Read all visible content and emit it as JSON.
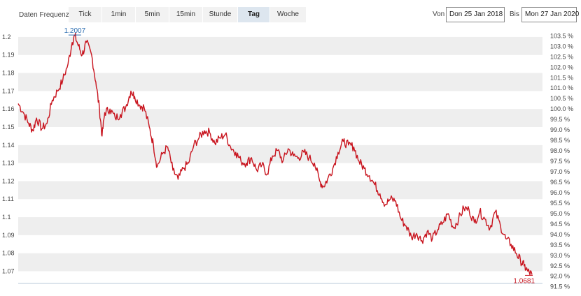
{
  "toolbar": {
    "frequency_label": "Daten Frequenz",
    "frequencies": [
      {
        "label": "Tick",
        "active": false
      },
      {
        "label": "1min",
        "active": false
      },
      {
        "label": "5min",
        "active": false
      },
      {
        "label": "15min",
        "active": false
      },
      {
        "label": "Stunde",
        "active": false
      },
      {
        "label": "Tag",
        "active": true
      },
      {
        "label": "Woche",
        "active": false
      }
    ],
    "from_label": "Von",
    "from_date": "Don 25 Jan 2018",
    "to_label": "Bis",
    "to_date": "Mon 27 Jan 2020"
  },
  "colors": {
    "line": "#c8141e",
    "band": "#eeeeee",
    "high_annotation": "#2a6cb0",
    "low_annotation": "#c8141e"
  },
  "chart_data": {
    "type": "line",
    "title": "",
    "xlabel": "",
    "ylabel": "",
    "x_start": "2018-01-25",
    "x_end": "2020-01-27",
    "ylim": [
      1.064,
      1.205
    ],
    "y_ticks": [
      1.2,
      1.19,
      1.18,
      1.17,
      1.16,
      1.15,
      1.14,
      1.13,
      1.12,
      1.11,
      1.1,
      1.09,
      1.08,
      1.07
    ],
    "y_tick_labels": [
      "1.2",
      "1.19",
      "1.18",
      "1.17",
      "1.16",
      "1.15",
      "1.14",
      "1.13",
      "1.12",
      "1.11",
      "1.1",
      "1.09",
      "1.08",
      "1.07"
    ],
    "y2_ticks": [
      103.5,
      103.0,
      102.5,
      102.0,
      101.5,
      101.0,
      100.5,
      100.0,
      99.5,
      99.0,
      98.5,
      98.0,
      97.5,
      97.0,
      96.5,
      96.0,
      95.5,
      95.0,
      94.5,
      94.0,
      93.5,
      93.0,
      92.5,
      92.0,
      91.5
    ],
    "y2_tick_labels": [
      "103.5 %",
      "103.0 %",
      "102.5 %",
      "102.0 %",
      "101.5 %",
      "101.0 %",
      "100.5 %",
      "100.0 %",
      "99.5 %",
      "99.0 %",
      "98.5 %",
      "98.0 %",
      "97.5 %",
      "97.0 %",
      "96.5 %",
      "96.0 %",
      "95.5 %",
      "95.0 %",
      "94.5 %",
      "94.0 %",
      "93.5 %",
      "93.0 %",
      "92.5 %",
      "92.0 %",
      "91.5 %"
    ],
    "y2_base": 1.16,
    "grid": "alternating bands",
    "legend": "none",
    "annotations": {
      "high": {
        "label": "1.2007",
        "value": 1.2007
      },
      "low": {
        "label": "1.0681",
        "value": 1.0681
      }
    },
    "series": [
      {
        "values": [
          [
            0.0,
            1.163
          ],
          [
            0.01,
            1.158
          ],
          [
            0.02,
            1.152
          ],
          [
            0.028,
            1.148
          ],
          [
            0.035,
            1.155
          ],
          [
            0.045,
            1.149
          ],
          [
            0.055,
            1.152
          ],
          [
            0.065,
            1.165
          ],
          [
            0.075,
            1.17
          ],
          [
            0.085,
            1.176
          ],
          [
            0.095,
            1.185
          ],
          [
            0.103,
            1.197
          ],
          [
            0.108,
            1.2007
          ],
          [
            0.115,
            1.195
          ],
          [
            0.122,
            1.19
          ],
          [
            0.13,
            1.197
          ],
          [
            0.14,
            1.19
          ],
          [
            0.148,
            1.175
          ],
          [
            0.155,
            1.16
          ],
          [
            0.16,
            1.145
          ],
          [
            0.165,
            1.158
          ],
          [
            0.175,
            1.16
          ],
          [
            0.185,
            1.155
          ],
          [
            0.195,
            1.157
          ],
          [
            0.205,
            1.161
          ],
          [
            0.215,
            1.17
          ],
          [
            0.222,
            1.167
          ],
          [
            0.232,
            1.162
          ],
          [
            0.24,
            1.161
          ],
          [
            0.25,
            1.15
          ],
          [
            0.258,
            1.14
          ],
          [
            0.265,
            1.128
          ],
          [
            0.275,
            1.135
          ],
          [
            0.285,
            1.139
          ],
          [
            0.295,
            1.126
          ],
          [
            0.305,
            1.121
          ],
          [
            0.315,
            1.127
          ],
          [
            0.325,
            1.13
          ],
          [
            0.335,
            1.14
          ],
          [
            0.345,
            1.144
          ],
          [
            0.355,
            1.148
          ],
          [
            0.365,
            1.147
          ],
          [
            0.375,
            1.141
          ],
          [
            0.385,
            1.144
          ],
          [
            0.395,
            1.146
          ],
          [
            0.405,
            1.139
          ],
          [
            0.415,
            1.136
          ],
          [
            0.425,
            1.131
          ],
          [
            0.435,
            1.13
          ],
          [
            0.445,
            1.133
          ],
          [
            0.455,
            1.126
          ],
          [
            0.465,
            1.129
          ],
          [
            0.475,
            1.124
          ],
          [
            0.485,
            1.134
          ],
          [
            0.495,
            1.137
          ],
          [
            0.505,
            1.131
          ],
          [
            0.515,
            1.138
          ],
          [
            0.525,
            1.134
          ],
          [
            0.535,
            1.133
          ],
          [
            0.545,
            1.136
          ],
          [
            0.555,
            1.133
          ],
          [
            0.565,
            1.13
          ],
          [
            0.575,
            1.12
          ],
          [
            0.582,
            1.117
          ],
          [
            0.59,
            1.121
          ],
          [
            0.6,
            1.127
          ],
          [
            0.61,
            1.136
          ],
          [
            0.62,
            1.142
          ],
          [
            0.63,
            1.14
          ],
          [
            0.64,
            1.139
          ],
          [
            0.65,
            1.131
          ],
          [
            0.66,
            1.127
          ],
          [
            0.67,
            1.123
          ],
          [
            0.68,
            1.118
          ],
          [
            0.69,
            1.113
          ],
          [
            0.7,
            1.107
          ],
          [
            0.71,
            1.11
          ],
          [
            0.72,
            1.109
          ],
          [
            0.73,
            1.099
          ],
          [
            0.74,
            1.095
          ],
          [
            0.75,
            1.089
          ],
          [
            0.76,
            1.091
          ],
          [
            0.77,
            1.087
          ],
          [
            0.78,
            1.092
          ],
          [
            0.79,
            1.088
          ],
          [
            0.8,
            1.093
          ],
          [
            0.81,
            1.097
          ],
          [
            0.82,
            1.102
          ],
          [
            0.83,
            1.094
          ],
          [
            0.84,
            1.099
          ],
          [
            0.85,
            1.105
          ],
          [
            0.86,
            1.104
          ],
          [
            0.87,
            1.097
          ],
          [
            0.88,
            1.103
          ],
          [
            0.89,
            1.099
          ],
          [
            0.9,
            1.094
          ],
          [
            0.91,
            1.103
          ],
          [
            0.92,
            1.095
          ],
          [
            0.93,
            1.088
          ],
          [
            0.94,
            1.085
          ],
          [
            0.95,
            1.08
          ],
          [
            0.958,
            1.076
          ],
          [
            0.965,
            1.073
          ],
          [
            0.972,
            1.07
          ],
          [
            0.98,
            1.0681
          ]
        ]
      }
    ]
  }
}
